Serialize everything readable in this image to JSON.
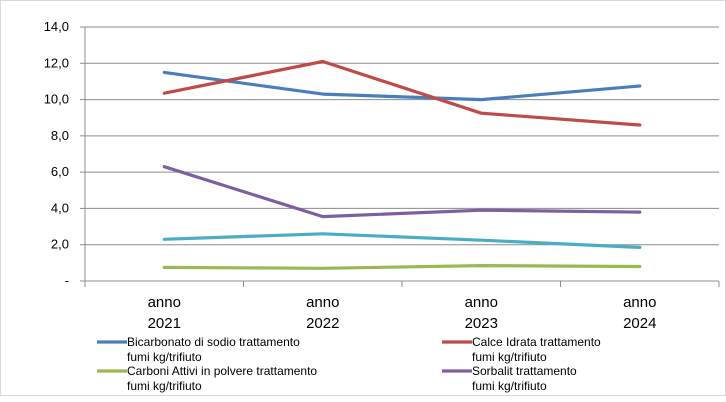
{
  "chart_data": {
    "type": "line",
    "categories": [
      [
        "anno",
        "2021"
      ],
      [
        "anno",
        "2022"
      ],
      [
        "anno",
        "2023"
      ],
      [
        "anno",
        "2024"
      ]
    ],
    "y_ticks": [
      "-",
      "2,0",
      "4,0",
      "6,0",
      "8,0",
      "10,0",
      "12,0",
      "14,0"
    ],
    "ylim": [
      0,
      14
    ],
    "grid": true,
    "legend_position": "bottom",
    "series": [
      {
        "name": [
          "Bicarbonato di sodio trattamento",
          "fumi kg/trifiuto"
        ],
        "color": "#4a7ebb",
        "values": [
          11.5,
          10.3,
          10.0,
          10.75
        ]
      },
      {
        "name": [
          "Calce Idrata trattamento",
          "fumi kg/trifiuto"
        ],
        "color": "#be4b48",
        "values": [
          10.35,
          12.1,
          9.25,
          8.6
        ]
      },
      {
        "name": [
          "Carboni Attivi in polvere trattamento",
          "fumi kg/trifiuto"
        ],
        "color": "#98b954",
        "values": [
          0.75,
          0.7,
          0.85,
          0.8
        ]
      },
      {
        "name": [
          "Sorbalit trattamento",
          "fumi kg/trifiuto"
        ],
        "color": "#7d5fa0",
        "values": [
          6.3,
          3.55,
          3.9,
          3.8
        ]
      },
      {
        "name": [],
        "color": "#4bacc6",
        "values": [
          2.3,
          2.6,
          2.25,
          1.85
        ]
      }
    ]
  }
}
